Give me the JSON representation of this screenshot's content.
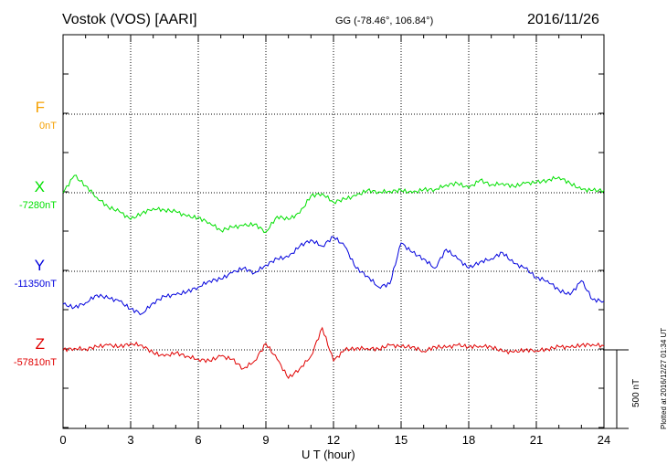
{
  "header": {
    "title": "Vostok (VOS)  [AARI]",
    "coords": "GG (-78.46°, 106.84°)",
    "date": "2016/11/26"
  },
  "side_note": "Plotted at 2016/12/27 01:34 UT",
  "scale_bar": {
    "label": "500 nT",
    "value_nT": 500
  },
  "chart_data": {
    "type": "line",
    "xlabel": "U T (hour)",
    "xlim": [
      0,
      24
    ],
    "xticks": [
      "0",
      "3",
      "6",
      "9",
      "12",
      "15",
      "18",
      "21",
      "24"
    ],
    "grid": true,
    "series": [
      {
        "name": "F",
        "baseline": "0nT",
        "color": "#f5a000",
        "values": []
      },
      {
        "name": "X",
        "baseline": "-7280nT",
        "color": "#00e000",
        "x": [
          0,
          0.5,
          1,
          1.5,
          2,
          2.5,
          3,
          3.5,
          4,
          4.5,
          5,
          5.5,
          6,
          6.5,
          7,
          7.5,
          8,
          8.5,
          9,
          9.5,
          10,
          10.5,
          11,
          11.5,
          12,
          12.5,
          13,
          13.5,
          14,
          14.5,
          15,
          15.5,
          16,
          16.5,
          17,
          17.5,
          18,
          18.5,
          19,
          19.5,
          20,
          20.5,
          21,
          21.5,
          22,
          22.5,
          23,
          23.5,
          24
        ],
        "values": [
          0,
          110,
          45,
          -30,
          -90,
          -120,
          -170,
          -130,
          -100,
          -110,
          -120,
          -150,
          -160,
          -190,
          -240,
          -220,
          -210,
          -200,
          -250,
          -150,
          -170,
          -130,
          -20,
          -5,
          -60,
          -40,
          -20,
          15,
          5,
          10,
          15,
          0,
          20,
          20,
          50,
          60,
          30,
          80,
          50,
          60,
          40,
          60,
          65,
          80,
          100,
          60,
          20,
          15,
          15
        ]
      },
      {
        "name": "Y",
        "baseline": "-11350nT",
        "color": "#0000dd",
        "x": [
          0,
          0.5,
          1,
          1.5,
          2,
          2.5,
          3,
          3.5,
          4,
          4.5,
          5,
          5.5,
          6,
          6.5,
          7,
          7.5,
          8,
          8.5,
          9,
          9.5,
          10,
          10.5,
          11,
          11.5,
          12,
          12.5,
          13,
          13.5,
          14,
          14.5,
          15,
          15.5,
          16,
          16.5,
          17,
          17.5,
          18,
          18.5,
          19,
          19.5,
          20,
          20.5,
          21,
          21.5,
          22,
          22.5,
          23,
          23.5,
          24
        ],
        "values": [
          -210,
          -230,
          -200,
          -150,
          -170,
          -190,
          -240,
          -270,
          -200,
          -160,
          -150,
          -130,
          -100,
          -60,
          -50,
          -10,
          20,
          -10,
          40,
          80,
          90,
          160,
          200,
          160,
          220,
          160,
          20,
          -30,
          -100,
          -80,
          180,
          120,
          80,
          20,
          140,
          80,
          20,
          60,
          80,
          120,
          50,
          20,
          -40,
          -60,
          -120,
          -150,
          -60,
          -180,
          -190
        ]
      },
      {
        "name": "Z",
        "baseline": "-57810nT",
        "color": "#e00000",
        "x": [
          0,
          0.5,
          1,
          1.5,
          2,
          2.5,
          3,
          3.5,
          4,
          4.5,
          5,
          5.5,
          6,
          6.5,
          7,
          7.5,
          8,
          8.5,
          9,
          9.5,
          10,
          10.5,
          11,
          11.5,
          12,
          12.5,
          13,
          13.5,
          14,
          14.5,
          15,
          15.5,
          16,
          16.5,
          17,
          17.5,
          18,
          18.5,
          19,
          19.5,
          20,
          20.5,
          21,
          21.5,
          22,
          22.5,
          23,
          23.5,
          24
        ],
        "values": [
          0,
          10,
          5,
          20,
          30,
          20,
          40,
          30,
          -20,
          -40,
          -20,
          -40,
          -60,
          -70,
          -40,
          -60,
          -120,
          -70,
          40,
          -60,
          -180,
          -120,
          -40,
          140,
          -70,
          0,
          10,
          10,
          5,
          30,
          20,
          20,
          -10,
          20,
          15,
          30,
          20,
          25,
          20,
          -10,
          -15,
          0,
          -5,
          5,
          20,
          15,
          30,
          35,
          25
        ]
      }
    ]
  }
}
